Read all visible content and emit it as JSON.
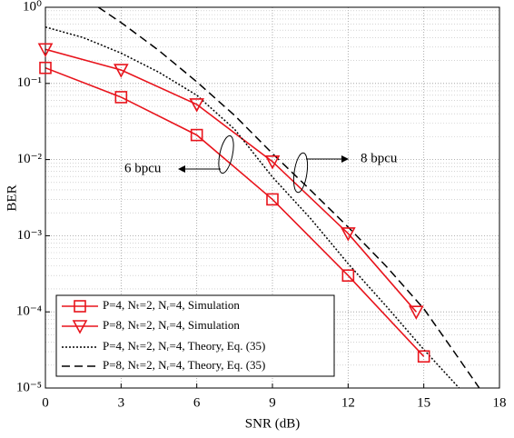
{
  "chart_data": {
    "type": "line",
    "xlabel": "SNR (dB)",
    "ylabel": "BER",
    "xlim": [
      0,
      18
    ],
    "xticks": [
      0,
      3,
      6,
      9,
      12,
      15,
      18
    ],
    "ylim": [
      1e-05,
      1
    ],
    "yticks": [
      {
        "value": 1e-05,
        "label": "10⁻⁵"
      },
      {
        "value": 0.0001,
        "label": "10⁻⁴"
      },
      {
        "value": 0.001,
        "label": "10⁻³"
      },
      {
        "value": 0.01,
        "label": "10⁻²"
      },
      {
        "value": 0.1,
        "label": "10⁻¹"
      },
      {
        "value": 1,
        "label": "10⁰"
      }
    ],
    "ylog": true,
    "grid": true,
    "yminor_grid": true,
    "legend": "lower left",
    "annotations": [
      "6 bpcu",
      "8 bpcu"
    ],
    "series": [
      {
        "name": "P=4, Nₜ=2, Nᵣ=4, Simulation",
        "color": "#e8141c",
        "marker": "square",
        "dash": "solid",
        "x": [
          0,
          3,
          6,
          9,
          12,
          15
        ],
        "values": [
          0.16,
          0.066,
          0.021,
          0.003,
          0.0003,
          2.6e-05
        ]
      },
      {
        "name": "P=8, Nₜ=2, Nᵣ=4, Simulation",
        "color": "#e8141c",
        "marker": "triangle-down",
        "dash": "solid",
        "x": [
          0,
          3,
          6,
          9,
          12,
          14.7
        ],
        "values": [
          0.28,
          0.15,
          0.053,
          0.0094,
          0.00107,
          0.0001
        ]
      },
      {
        "name": "P=4, Nₜ=2, Nᵣ=4, Theory, Eq. (35)",
        "color": "#000000",
        "marker": "none",
        "dash": "dotted",
        "x": [
          0,
          1.5,
          3,
          4.5,
          6,
          7.5,
          9,
          10.5,
          12,
          13.5,
          15,
          16.4
        ],
        "values": [
          0.55,
          0.4,
          0.25,
          0.14,
          0.07,
          0.025,
          0.0059,
          0.0017,
          0.00043,
          0.00012,
          3.2e-05,
          1e-05
        ]
      },
      {
        "name": "P=8, Nₜ=2, Nᵣ=4, Theory, Eq. (35)",
        "color": "#000000",
        "marker": "none",
        "dash": "dashed",
        "x": [
          2.1,
          3,
          4.5,
          6,
          7.5,
          9,
          10.5,
          12,
          13.5,
          15,
          16.2,
          17.2
        ],
        "values": [
          1,
          0.63,
          0.27,
          0.105,
          0.038,
          0.012,
          0.004,
          0.0013,
          0.0004,
          0.00011,
          3e-05,
          1e-05
        ]
      }
    ]
  }
}
